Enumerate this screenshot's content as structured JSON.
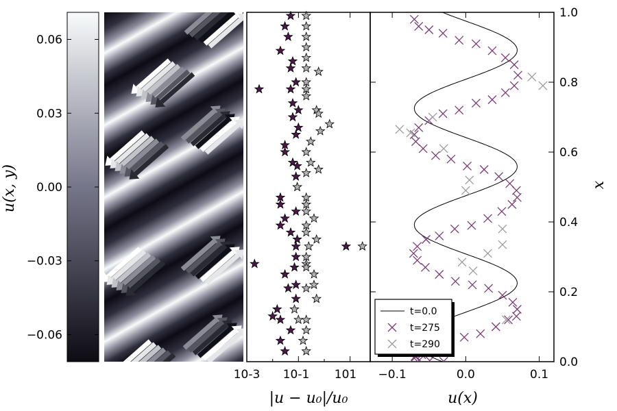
{
  "chart_data": [
    {
      "type": "heatmap",
      "panel": "colorbar",
      "ylabel": "u(x, y)",
      "ylim": [
        -0.071,
        0.071
      ],
      "ticks": [
        0.06,
        0.03,
        0.0,
        -0.03,
        -0.06
      ],
      "tick_labels": [
        "0.06",
        "0.03",
        "0.00",
        "−0.03",
        "−0.06"
      ],
      "colormap": "bone",
      "colors": {
        "low": "#0d0c14",
        "mid": "#76768a",
        "high": "#f8fbfb"
      }
    },
    {
      "type": "heatmap",
      "panel": "field",
      "description_only": false,
      "pattern": "diagonal stripes",
      "arrows": true
    },
    {
      "type": "scatter",
      "panel": "error",
      "xlabel": "|u − u₀|/u₀",
      "xscale": "log",
      "xlim": [
        0.001,
        60
      ],
      "ylim": [
        0.0,
        1.0
      ],
      "xtick_labels": [
        "10-3",
        "10-1",
        "101"
      ],
      "series": [
        {
          "marker": "star",
          "color": "#4a1848",
          "x": [
            0.05,
            0.03,
            0.04,
            0.02,
            0.06,
            0.05,
            0.08,
            0.05,
            0.003,
            0.06,
            0.1,
            0.06,
            0.1,
            0.08,
            0.03,
            0.03,
            0.06,
            0.09,
            0.08,
            0.09,
            0.02,
            0.02,
            0.08,
            0.03,
            0.02,
            0.05,
            0.09,
            0.08,
            7,
            0.002,
            0.08,
            0.07,
            0.03,
            0.08,
            0.04,
            0.08,
            0.015,
            0.01,
            0.02,
            0.05,
            0.02,
            0.03
          ],
          "y": [
            0.99,
            0.96,
            0.93,
            0.89,
            0.86,
            0.84,
            0.8,
            0.78,
            0.78,
            0.74,
            0.72,
            0.7,
            0.67,
            0.65,
            0.62,
            0.6,
            0.57,
            0.56,
            0.53,
            0.5,
            0.47,
            0.45,
            0.43,
            0.41,
            0.39,
            0.37,
            0.35,
            0.33,
            0.33,
            0.28,
            0.3,
            0.27,
            0.25,
            0.22,
            0.21,
            0.18,
            0.15,
            0.13,
            0.12,
            0.09,
            0.06,
            0.03
          ]
        },
        {
          "marker": "star",
          "color": "#b5b3b3",
          "x": [
            0.2,
            0.2,
            0.2,
            0.2,
            0.2,
            0.2,
            0.6,
            0.2,
            0.2,
            0.2,
            0.5,
            0.6,
            1.6,
            0.7,
            0.3,
            0.2,
            0.3,
            0.6,
            0.2,
            0.09,
            0.2,
            0.2,
            0.2,
            0.4,
            0.2,
            0.2,
            0.5,
            0.25,
            30,
            0.2,
            0.2,
            0.2,
            0.4,
            0.4,
            0.2,
            0.5,
            0.07,
            0.2,
            0.1,
            0.2,
            0.15,
            0.2
          ],
          "y": [
            0.99,
            0.96,
            0.93,
            0.9,
            0.87,
            0.84,
            0.83,
            0.8,
            0.78,
            0.76,
            0.72,
            0.71,
            0.68,
            0.66,
            0.63,
            0.6,
            0.57,
            0.55,
            0.54,
            0.5,
            0.47,
            0.45,
            0.43,
            0.41,
            0.39,
            0.37,
            0.35,
            0.33,
            0.33,
            0.28,
            0.3,
            0.27,
            0.25,
            0.22,
            0.21,
            0.18,
            0.15,
            0.12,
            0.12,
            0.09,
            0.06,
            0.03
          ]
        }
      ]
    },
    {
      "type": "line",
      "panel": "profile",
      "xlabel": "u(x)",
      "ylabel": "x",
      "xlim": [
        -0.13,
        0.12
      ],
      "ylim": [
        0.0,
        1.0
      ],
      "xticks": [
        -0.1,
        0.0,
        0.1
      ],
      "xtick_labels": [
        "−0.1",
        "0.0",
        "0.1"
      ],
      "yticks": [
        0.0,
        0.2,
        0.4,
        0.6,
        0.8,
        1.0
      ],
      "ytick_labels": [
        "0.0",
        "0.2",
        "0.4",
        "0.6",
        "0.8",
        "1.0"
      ],
      "legend_position": "lower-left",
      "series": [
        {
          "name": "t=0.0",
          "kind": "line",
          "color": "#000000",
          "amplitude": 0.07,
          "cycles": 3.0
        },
        {
          "name": "t=275",
          "kind": "markers",
          "marker": "x",
          "color": "#7b3b78",
          "x": [
            -0.07,
            -0.064,
            -0.05,
            -0.031,
            -0.009,
            0.014,
            0.036,
            0.054,
            0.066,
            0.071,
            0.066,
            0.054,
            0.036,
            0.014,
            -0.009,
            -0.031,
            -0.05,
            -0.064,
            -0.07,
            -0.068,
            -0.058,
            -0.041,
            -0.02,
            0.002,
            0.025,
            0.045,
            0.06,
            0.069,
            0.07,
            0.063,
            0.049,
            0.03,
            0.008,
            -0.015,
            -0.036,
            -0.054,
            -0.066,
            -0.071,
            -0.066,
            -0.055,
            -0.036,
            -0.014,
            0.009,
            0.031,
            0.05,
            0.064,
            0.07,
            0.069,
            0.058,
            0.041,
            0.02,
            -0.002,
            -0.025,
            -0.045,
            -0.06,
            -0.069,
            -0.07,
            -0.063,
            -0.049,
            -0.03
          ],
          "y": [
            0.98,
            0.96,
            0.95,
            0.94,
            0.92,
            0.91,
            0.89,
            0.87,
            0.85,
            0.82,
            0.79,
            0.77,
            0.75,
            0.74,
            0.72,
            0.71,
            0.69,
            0.67,
            0.65,
            0.63,
            0.61,
            0.59,
            0.58,
            0.56,
            0.55,
            0.53,
            0.51,
            0.49,
            0.47,
            0.45,
            0.43,
            0.41,
            0.39,
            0.38,
            0.36,
            0.35,
            0.33,
            0.31,
            0.29,
            0.27,
            0.25,
            0.23,
            0.22,
            0.21,
            0.19,
            0.17,
            0.15,
            0.13,
            0.12,
            0.1,
            0.08,
            0.07,
            0.05,
            0.03,
            0.02,
            0.015,
            0.01,
            0.005,
            0.003,
            0.001
          ]
        },
        {
          "name": "t=290",
          "kind": "markers",
          "marker": "x",
          "color": "#9c9c9c",
          "x": [
            0.09,
            0.105,
            -0.09,
            -0.045,
            -0.075,
            -0.03,
            0.005,
            0.0,
            0.05,
            0.05,
            0.03,
            -0.005,
            0.01,
            0.055
          ],
          "y": [
            0.815,
            0.79,
            0.665,
            0.7,
            0.655,
            0.61,
            0.52,
            0.49,
            0.38,
            0.335,
            0.31,
            0.285,
            0.26,
            0.12
          ]
        }
      ]
    }
  ]
}
